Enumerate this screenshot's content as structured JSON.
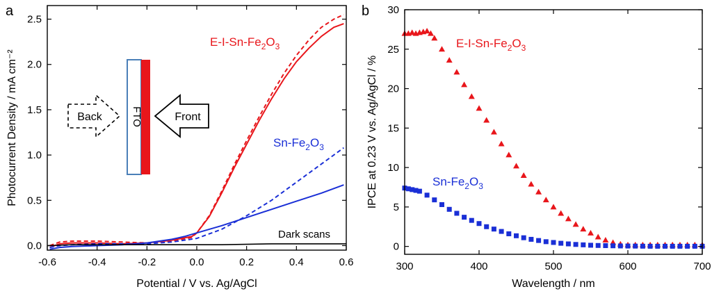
{
  "chart_data": [
    {
      "panel": "a",
      "type": "line",
      "xlabel": "Potential / V vs. Ag/AgCl",
      "ylabel": "Photocurrent Density / mA cm⁻²",
      "xlim": [
        -0.6,
        0.6
      ],
      "ylim": [
        -0.05,
        2.65
      ],
      "xticks": [
        -0.6,
        -0.4,
        -0.2,
        0.0,
        0.2,
        0.4,
        0.6
      ],
      "xticklabels": [
        "-0.6",
        "-0.4",
        "-0.2",
        "0.0",
        "0.2",
        "0.4",
        "0.6"
      ],
      "yticks": [
        0.0,
        0.5,
        1.0,
        1.5,
        2.0,
        2.5
      ],
      "yticklabels": [
        "0.0",
        "0.5",
        "1.0",
        "1.5",
        "2.0",
        "2.5"
      ],
      "series": [
        {
          "name": "E-I-Sn-Fe2O3 (front, solid)",
          "color": "#e8161b",
          "dash": false,
          "x": [
            -0.59,
            -0.55,
            -0.5,
            -0.4,
            -0.3,
            -0.2,
            -0.1,
            -0.02,
            0.0,
            0.05,
            0.1,
            0.15,
            0.2,
            0.25,
            0.3,
            0.35,
            0.4,
            0.45,
            0.5,
            0.55,
            0.59
          ],
          "y": [
            -0.02,
            0.02,
            0.03,
            0.03,
            0.02,
            0.03,
            0.06,
            0.1,
            0.14,
            0.32,
            0.58,
            0.86,
            1.12,
            1.38,
            1.62,
            1.84,
            2.03,
            2.18,
            2.31,
            2.41,
            2.45
          ]
        },
        {
          "name": "E-I-Sn-Fe2O3 (back, dashed)",
          "color": "#e8161b",
          "dash": true,
          "x": [
            -0.59,
            -0.55,
            -0.5,
            -0.4,
            -0.3,
            -0.2,
            -0.1,
            -0.02,
            0.0,
            0.05,
            0.1,
            0.15,
            0.2,
            0.25,
            0.3,
            0.35,
            0.4,
            0.45,
            0.5,
            0.55,
            0.59
          ],
          "y": [
            0.0,
            0.04,
            0.05,
            0.05,
            0.04,
            0.03,
            0.05,
            0.09,
            0.14,
            0.33,
            0.6,
            0.89,
            1.16,
            1.42,
            1.67,
            1.9,
            2.1,
            2.27,
            2.41,
            2.5,
            2.55
          ]
        },
        {
          "name": "Sn-Fe2O3 (front, solid)",
          "color": "#1a2fd6",
          "dash": false,
          "x": [
            -0.59,
            -0.55,
            -0.5,
            -0.4,
            -0.3,
            -0.2,
            -0.1,
            -0.05,
            0.0,
            0.1,
            0.2,
            0.3,
            0.4,
            0.5,
            0.59
          ],
          "y": [
            -0.04,
            -0.02,
            -0.01,
            0.0,
            0.01,
            0.03,
            0.07,
            0.1,
            0.14,
            0.22,
            0.31,
            0.4,
            0.49,
            0.58,
            0.67
          ]
        },
        {
          "name": "Sn-Fe2O3 (back, dashed)",
          "color": "#1a2fd6",
          "dash": true,
          "x": [
            -0.59,
            -0.55,
            -0.5,
            -0.4,
            -0.3,
            -0.2,
            -0.1,
            0.0,
            0.1,
            0.2,
            0.3,
            0.4,
            0.5,
            0.59
          ],
          "y": [
            -0.02,
            0.0,
            0.01,
            0.02,
            0.02,
            0.02,
            0.04,
            0.08,
            0.18,
            0.33,
            0.5,
            0.7,
            0.9,
            1.08
          ]
        },
        {
          "name": "Dark scans",
          "color": "#000000",
          "dash": false,
          "x": [
            -0.6,
            -0.5,
            -0.3,
            -0.1,
            0.1,
            0.3,
            0.6
          ],
          "y": [
            0.0,
            0.01,
            0.01,
            0.01,
            0.01,
            0.02,
            0.02
          ]
        }
      ],
      "annotations": {
        "e_label": "E-I-Sn-Fe",
        "e_sub": "2",
        "e_mid": "O",
        "e_sub2": "3",
        "sn_label": "Sn-Fe",
        "sn_sub": "2",
        "sn_mid": "O",
        "sn_sub2": "3",
        "dark": "Dark scans",
        "back": "Back",
        "front": "Front",
        "fto": "FTO"
      }
    },
    {
      "panel": "b",
      "type": "scatter",
      "xlabel": "Wavelength / nm",
      "ylabel": "IPCE at 0.23 V vs. Ag/AgCl / %",
      "xlim": [
        300,
        700
      ],
      "ylim": [
        -1,
        30
      ],
      "xticks": [
        300,
        400,
        500,
        600,
        700
      ],
      "xticklabels": [
        "300",
        "400",
        "500",
        "600",
        "700"
      ],
      "yticks": [
        0,
        5,
        10,
        15,
        20,
        25,
        30
      ],
      "yticklabels": [
        "0",
        "5",
        "10",
        "15",
        "20",
        "25",
        "30"
      ],
      "series": [
        {
          "name": "E-I-Sn-Fe2O3",
          "marker": "triangle",
          "color": "#e8161b",
          "x": [
            300,
            305,
            310,
            315,
            320,
            325,
            330,
            335,
            340,
            350,
            360,
            370,
            380,
            390,
            400,
            410,
            420,
            430,
            440,
            450,
            460,
            470,
            480,
            490,
            500,
            510,
            520,
            530,
            540,
            550,
            560,
            570,
            580,
            590,
            600,
            610,
            620,
            630,
            640,
            650,
            660,
            670,
            680,
            690,
            700
          ],
          "y": [
            27.0,
            27.0,
            27.1,
            27.0,
            27.1,
            27.2,
            27.3,
            27.0,
            26.4,
            25.0,
            23.6,
            22.1,
            20.5,
            19.0,
            17.5,
            16.0,
            14.5,
            13.0,
            11.6,
            10.2,
            9.0,
            7.9,
            6.9,
            5.9,
            5.0,
            4.2,
            3.5,
            2.8,
            2.2,
            1.7,
            1.2,
            0.8,
            0.5,
            0.3,
            0.2,
            0.2,
            0.2,
            0.2,
            0.2,
            0.2,
            0.2,
            0.2,
            0.2,
            0.2,
            0.2
          ]
        },
        {
          "name": "Sn-Fe2O3",
          "marker": "square",
          "color": "#1a2fd6",
          "x": [
            300,
            305,
            310,
            315,
            320,
            330,
            340,
            350,
            360,
            370,
            380,
            390,
            400,
            410,
            420,
            430,
            440,
            450,
            460,
            470,
            480,
            490,
            500,
            510,
            520,
            530,
            540,
            550,
            560,
            570,
            580,
            590,
            600,
            610,
            620,
            630,
            640,
            650,
            660,
            670,
            680,
            690,
            700
          ],
          "y": [
            7.4,
            7.3,
            7.2,
            7.1,
            7.0,
            6.5,
            5.9,
            5.3,
            4.7,
            4.2,
            3.7,
            3.3,
            2.9,
            2.5,
            2.2,
            1.9,
            1.6,
            1.35,
            1.1,
            0.9,
            0.75,
            0.6,
            0.5,
            0.4,
            0.32,
            0.25,
            0.2,
            0.15,
            0.12,
            0.1,
            0.08,
            0.06,
            0.05,
            0.04,
            0.03,
            0.02,
            0.02,
            0.02,
            0.02,
            0.02,
            0.02,
            0.02,
            0.02
          ]
        }
      ],
      "annotations": {
        "e_label": "E-I-Sn-Fe",
        "e_sub": "2",
        "e_mid": "O",
        "e_sub2": "3",
        "sn_label": "Sn-Fe",
        "sn_sub": "2",
        "sn_mid": "O",
        "sn_sub2": "3"
      }
    }
  ]
}
